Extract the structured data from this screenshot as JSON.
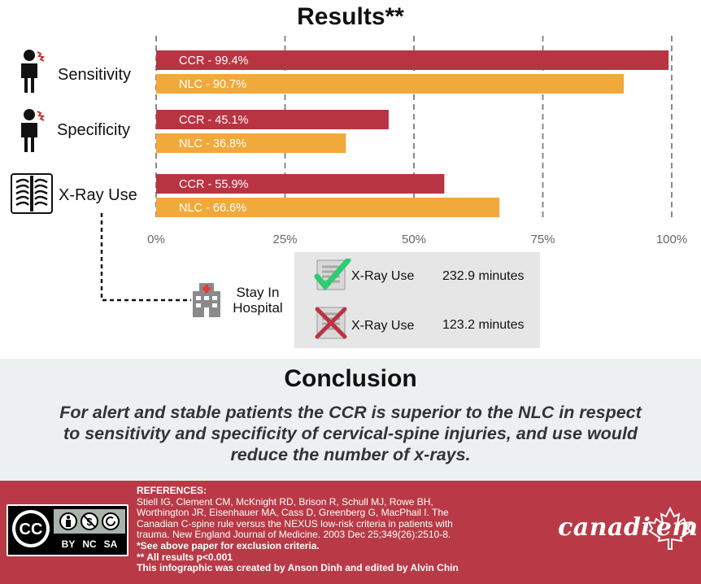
{
  "results": {
    "title": "Results**"
  },
  "chart_data": {
    "type": "bar",
    "categories": [
      "Sensitivity",
      "Specificity",
      "X-Ray Use"
    ],
    "series": [
      {
        "name": "CCR",
        "values": [
          99.4,
          45.1,
          55.9
        ],
        "labels": [
          "CCR - 99.4%",
          "CCR - 45.1%",
          "CCR - 55.9%"
        ]
      },
      {
        "name": "NLC",
        "values": [
          90.7,
          36.8,
          66.6
        ],
        "labels": [
          "NLC - 90.7%",
          "NLC - 36.8%",
          "NLC - 66.6%"
        ]
      }
    ],
    "x_ticks": [
      "0%",
      "25%",
      "50%",
      "75%",
      "100%"
    ],
    "xlim": [
      0,
      100
    ],
    "orientation": "horizontal",
    "grid": "vertical-dashed",
    "colors": {
      "CCR": "#b93442",
      "NLC": "#f2a93b",
      "grid": "#888888"
    }
  },
  "row_icons": [
    "neck-pain-person-icon",
    "neck-pain-person-icon",
    "chest-xray-icon"
  ],
  "hospital_stay": {
    "label_line1": "Stay In",
    "label_line2": "Hospital",
    "rows": [
      {
        "icon": "xray-checkmark-icon",
        "label": "X-Ray Use",
        "value": "232.9 minutes"
      },
      {
        "icon": "xray-cross-icon",
        "label": "X-Ray Use",
        "value": "123.2 minutes"
      }
    ]
  },
  "conclusion": {
    "title": "Conclusion",
    "line1": "For alert and stable patients the CCR is superior to the NLC in respect",
    "line2": "to sensitivity and specificity of cervical-spine injuries, and use would",
    "line3": "reduce the number of x-rays."
  },
  "footer": {
    "refs_heading": "REFERENCES:",
    "ref1": "Stiell IG, Clement CM, McKnight RD, Brison R, Schull MJ, Rowe BH,",
    "ref2": "Worthington JR, Eisenhauer MA, Cass D, Greenberg G, MacPhail I. The",
    "ref3": "Canadian C-spine rule versus the NEXUS low-risk criteria in patients with",
    "ref4": "trauma. New England Journal of Medicine. 2003 Dec 25;349(26):2510-8.",
    "note1": "*See above paper for exclusion criteria.",
    "note2": "** All results p<0.001",
    "note3": "This infographic was created by Anson Dinh and edited by Alvin Chin",
    "license": {
      "cc": "CC",
      "by": "BY",
      "nc": "NC",
      "sa": "SA"
    },
    "brand": "canadi em"
  }
}
